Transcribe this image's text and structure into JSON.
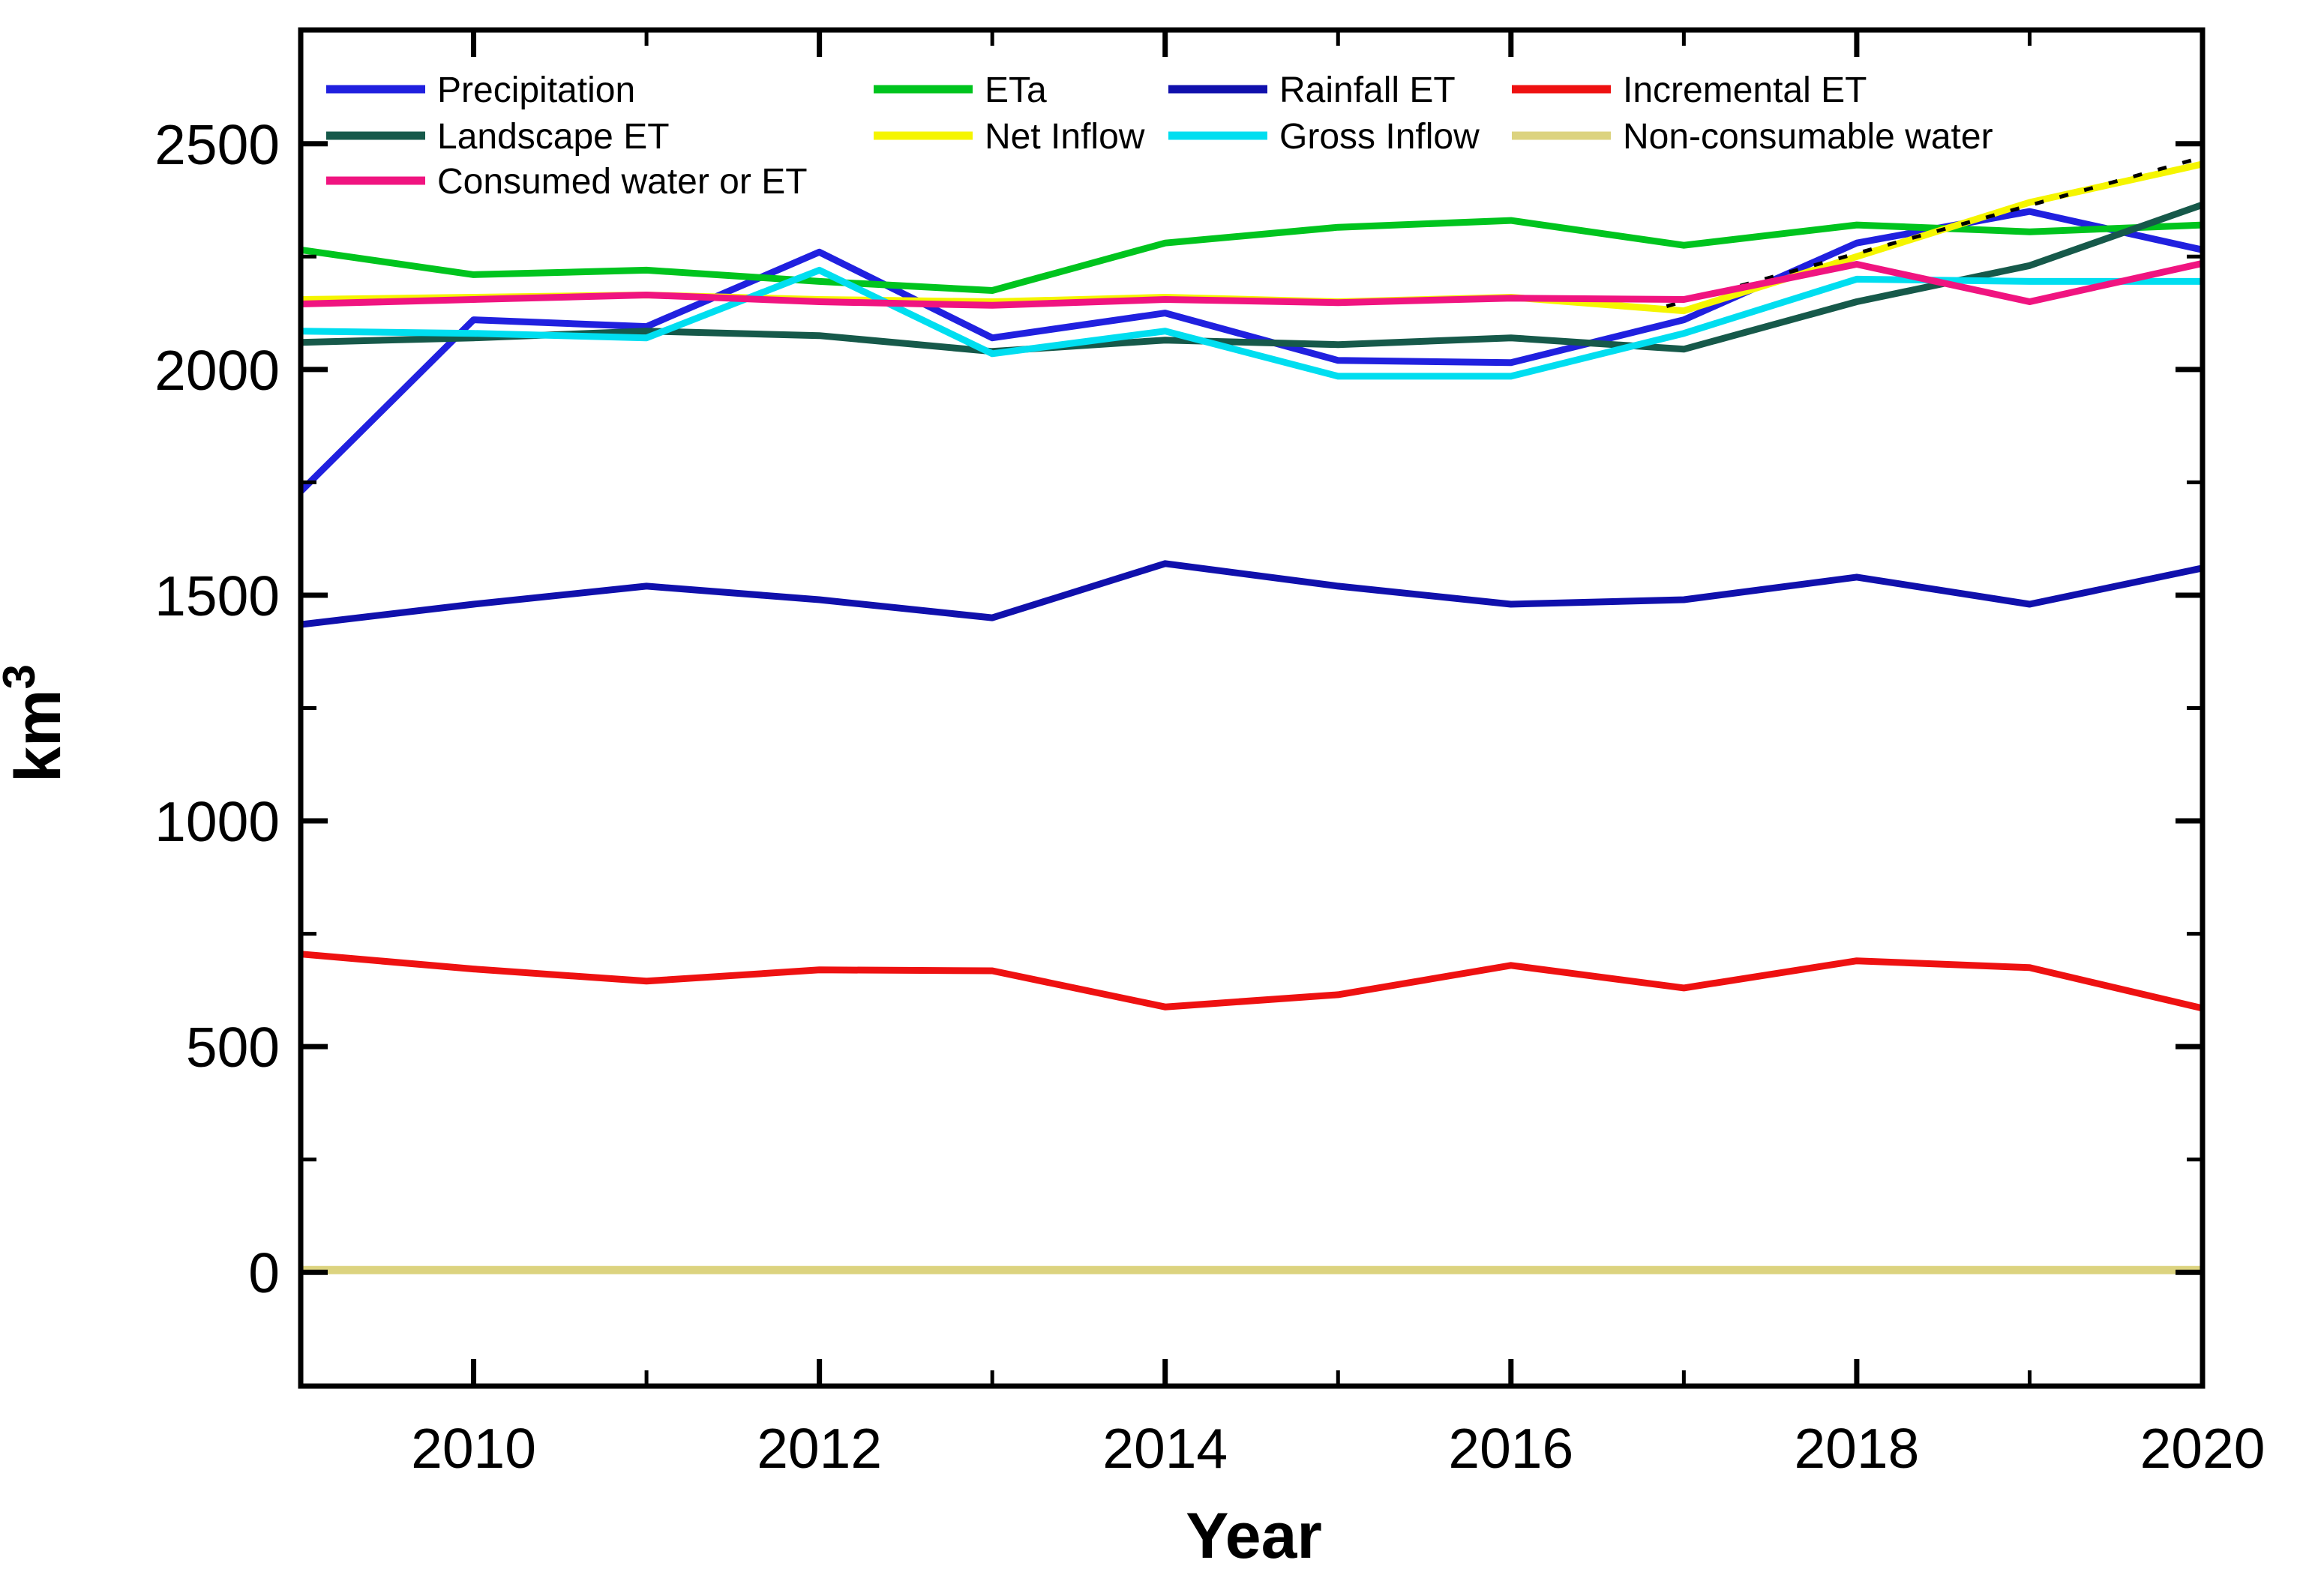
{
  "chart_data": {
    "type": "line",
    "x": [
      2009,
      2010,
      2011,
      2012,
      2013,
      2014,
      2015,
      2016,
      2017,
      2018,
      2019,
      2020
    ],
    "xlabel": "Year",
    "ylabel": "km³",
    "xlim": [
      2009,
      2020
    ],
    "ylim": [
      -252,
      2752
    ],
    "yticks": [
      0,
      500,
      1000,
      1500,
      2000,
      2500
    ],
    "ytick_minor_step": 250,
    "xticks": [
      2010,
      2012,
      2014,
      2016,
      2018,
      2020
    ],
    "xticks_minor": [
      2011,
      2013,
      2015,
      2017,
      2019
    ],
    "grid": false,
    "legend_position": "top-left-inside",
    "frame_color": "#000000",
    "series": [
      {
        "name": "Precipitation",
        "color": "#2020DF",
        "values": [
          1730,
          2110,
          2095,
          2260,
          2070,
          2125,
          2020,
          2015,
          2110,
          2280,
          2350,
          2265
        ]
      },
      {
        "name": "ETa",
        "color": "#00C41E",
        "values": [
          2265,
          2210,
          2220,
          2195,
          2175,
          2280,
          2315,
          2330,
          2275,
          2320,
          2305,
          2320
        ]
      },
      {
        "name": "Rainfall ET",
        "color": "#1010AC",
        "values": [
          1435,
          1480,
          1520,
          1490,
          1450,
          1570,
          1520,
          1480,
          1490,
          1540,
          1480,
          1560
        ]
      },
      {
        "name": "Incremental ET",
        "color": "#EE1111",
        "values": [
          705,
          672,
          645,
          670,
          668,
          588,
          615,
          680,
          630,
          690,
          675,
          585
        ]
      },
      {
        "name": "Landscape ET",
        "color": "#16594A",
        "values": [
          2060,
          2070,
          2085,
          2075,
          2040,
          2065,
          2055,
          2070,
          2045,
          2150,
          2230,
          2365
        ]
      },
      {
        "name": "Net Inflow",
        "color": "#F5F500",
        "values": [
          2155,
          2160,
          2165,
          2155,
          2150,
          2160,
          2150,
          2160,
          2130,
          2250,
          2370,
          2455
        ]
      },
      {
        "name": "Gross Inflow",
        "color": "#00DEF0",
        "values": [
          2085,
          2080,
          2070,
          2220,
          2035,
          2085,
          1985,
          1985,
          2080,
          2200,
          2195,
          2195
        ]
      },
      {
        "name": "Non-consumable water",
        "color": "#DCD37F",
        "values": [
          5,
          5,
          5,
          5,
          5,
          5,
          5,
          5,
          5,
          5,
          5,
          5
        ]
      },
      {
        "name": "Consumed water or ET",
        "color": "#F01480",
        "values": [
          2145,
          2155,
          2165,
          2150,
          2142,
          2155,
          2148,
          2158,
          2155,
          2233,
          2150,
          2235
        ]
      }
    ],
    "trendline": {
      "style": "dashed",
      "color": "#000000",
      "x1": 2016.9,
      "y1": 2140,
      "x2": 2020,
      "y2": 2470
    }
  }
}
